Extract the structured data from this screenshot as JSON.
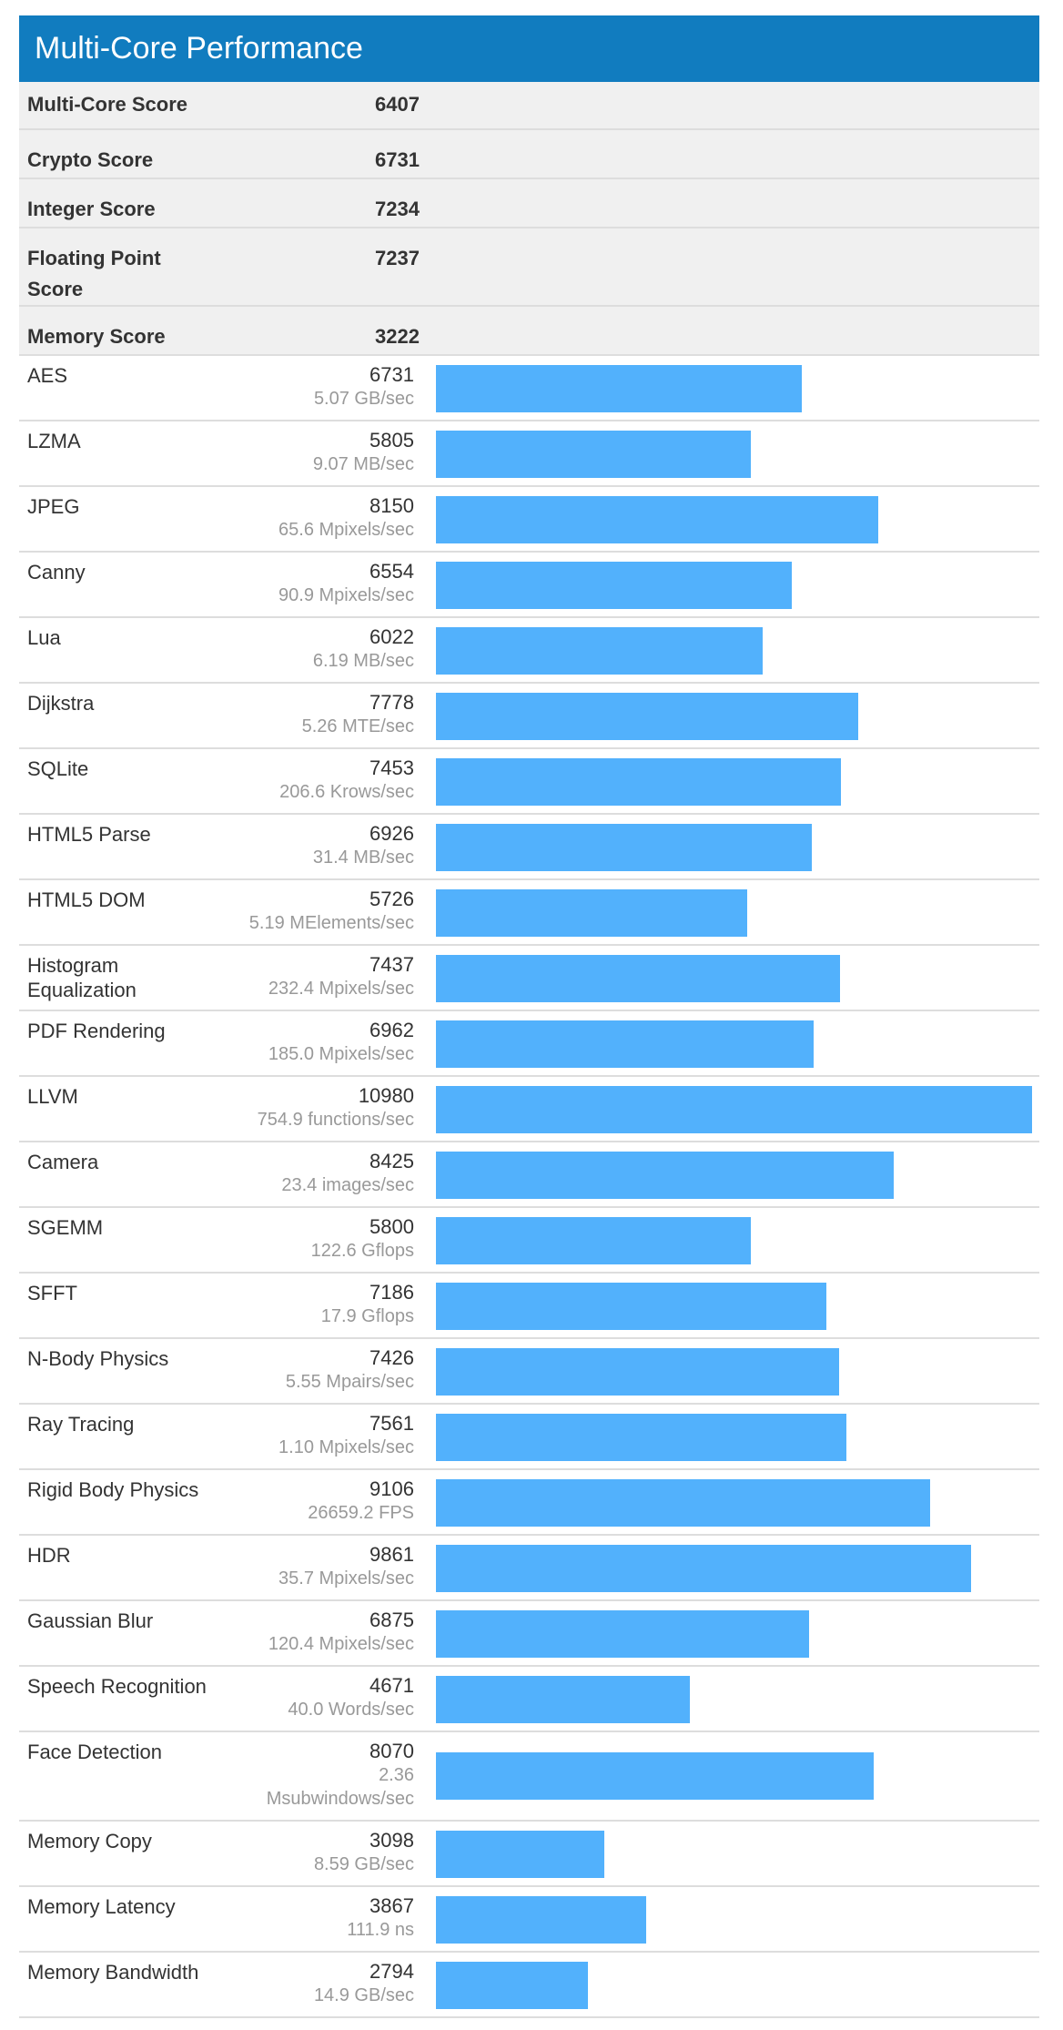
{
  "title": "Multi-Core Performance",
  "colors": {
    "header_bg": "#117cbf",
    "bar": "#52b1fc",
    "summary_bg": "#f0f0f0"
  },
  "summary": [
    {
      "name": "Multi-Core Score",
      "value": "6407"
    },
    {
      "name": "Crypto Score",
      "value": "6731"
    },
    {
      "name": "Integer Score",
      "value": "7234"
    },
    {
      "name": "Floating Point Score",
      "value": "7237"
    },
    {
      "name": "Memory Score",
      "value": "3222"
    }
  ],
  "chart_data": {
    "type": "bar",
    "orientation": "horizontal",
    "title": "Multi-Core Performance",
    "xlim": [
      0,
      10980
    ],
    "categories": [
      "AES",
      "LZMA",
      "JPEG",
      "Canny",
      "Lua",
      "Dijkstra",
      "SQLite",
      "HTML5 Parse",
      "HTML5 DOM",
      "Histogram Equalization",
      "PDF Rendering",
      "LLVM",
      "Camera",
      "SGEMM",
      "SFFT",
      "N-Body Physics",
      "Ray Tracing",
      "Rigid Body Physics",
      "HDR",
      "Gaussian Blur",
      "Speech Recognition",
      "Face Detection",
      "Memory Copy",
      "Memory Latency",
      "Memory Bandwidth"
    ],
    "values": [
      6731,
      5805,
      8150,
      6554,
      6022,
      7778,
      7453,
      6926,
      5726,
      7437,
      6962,
      10980,
      8425,
      5800,
      7186,
      7426,
      7561,
      9106,
      9861,
      6875,
      4671,
      8070,
      3098,
      3867,
      2794
    ],
    "units": [
      "5.07 GB/sec",
      "9.07 MB/sec",
      "65.6 Mpixels/sec",
      "90.9 Mpixels/sec",
      "6.19 MB/sec",
      "5.26 MTE/sec",
      "206.6 Krows/sec",
      "31.4 MB/sec",
      "5.19 MElements/sec",
      "232.4 Mpixels/sec",
      "185.0 Mpixels/sec",
      "754.9 functions/sec",
      "23.4 images/sec",
      "122.6 Gflops",
      "17.9 Gflops",
      "5.55 Mpairs/sec",
      "1.10 Mpixels/sec",
      "26659.2 FPS",
      "35.7 Mpixels/sec",
      "120.4 Mpixels/sec",
      "40.0 Words/sec",
      "2.36 Msubwindows/sec",
      "8.59 GB/sec",
      "111.9 ns",
      "14.9 GB/sec"
    ]
  }
}
